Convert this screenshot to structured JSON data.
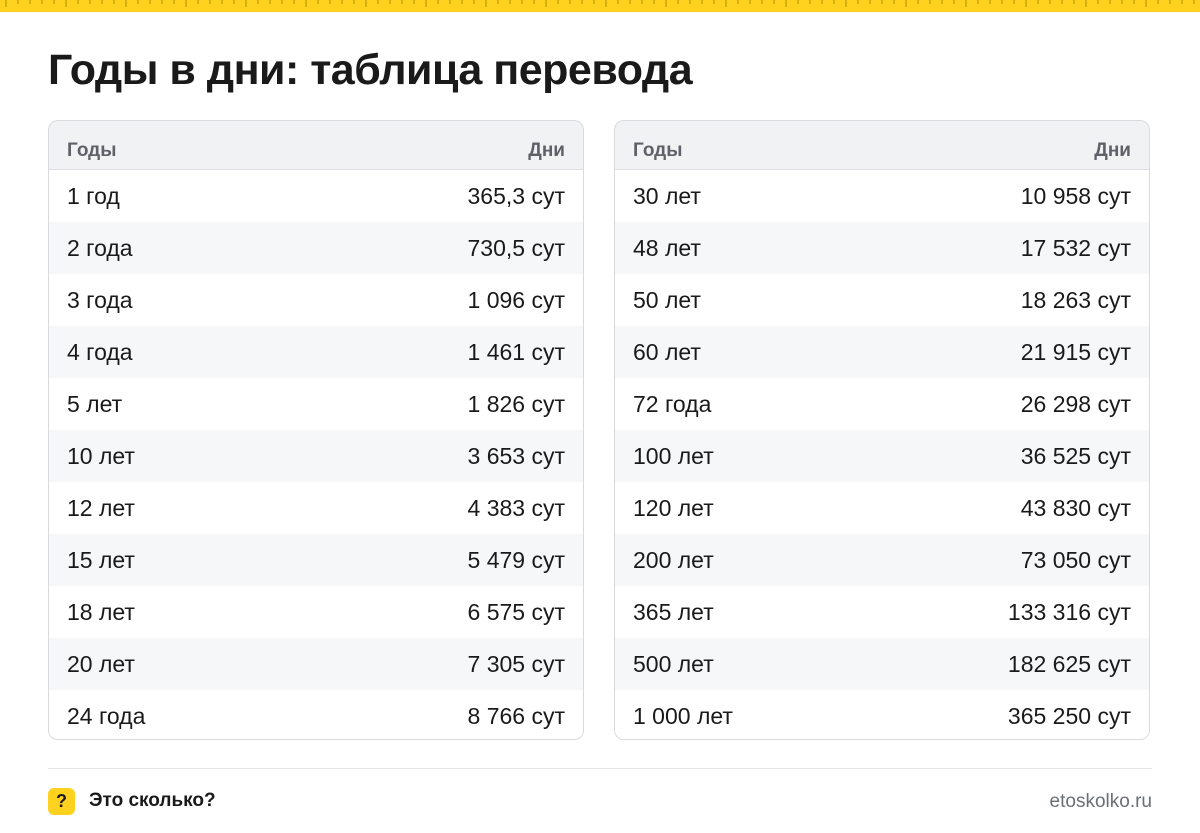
{
  "title": "Годы в дни: таблица перевода",
  "colors": {
    "accent": "#ffd21f",
    "header_bg": "#f1f2f4",
    "stripe_bg": "#f6f7f8"
  },
  "tables": [
    {
      "header": {
        "years": "Годы",
        "days": "Дни"
      },
      "rows": [
        {
          "years": "1 год",
          "days": "365,3 сут"
        },
        {
          "years": "2 года",
          "days": "730,5 сут"
        },
        {
          "years": "3 года",
          "days": "1 096 сут"
        },
        {
          "years": "4 года",
          "days": "1 461 сут"
        },
        {
          "years": "5 лет",
          "days": "1 826 сут"
        },
        {
          "years": "10 лет",
          "days": "3 653 сут"
        },
        {
          "years": "12 лет",
          "days": "4 383 сут"
        },
        {
          "years": "15 лет",
          "days": "5 479 сут"
        },
        {
          "years": "18 лет",
          "days": "6 575 сут"
        },
        {
          "years": "20 лет",
          "days": "7 305 сут"
        },
        {
          "years": "24 года",
          "days": "8 766 сут"
        }
      ]
    },
    {
      "header": {
        "years": "Годы",
        "days": "Дни"
      },
      "rows": [
        {
          "years": "30 лет",
          "days": "10 958 сут"
        },
        {
          "years": "48 лет",
          "days": "17 532 сут"
        },
        {
          "years": "50 лет",
          "days": "18 263 сут"
        },
        {
          "years": "60 лет",
          "days": "21 915 сут"
        },
        {
          "years": "72 года",
          "days": "26 298 сут"
        },
        {
          "years": "100 лет",
          "days": "36 525 сут"
        },
        {
          "years": "120 лет",
          "days": "43 830 сут"
        },
        {
          "years": "200 лет",
          "days": "73 050 сут"
        },
        {
          "years": "365 лет",
          "days": "133 316 сут"
        },
        {
          "years": "500 лет",
          "days": "182 625 сут"
        },
        {
          "years": "1 000 лет",
          "days": "365 250 сут"
        }
      ]
    }
  ],
  "footer": {
    "logo_glyph": "?",
    "brand": "Это сколько?",
    "url": "etoskolko.ru"
  }
}
